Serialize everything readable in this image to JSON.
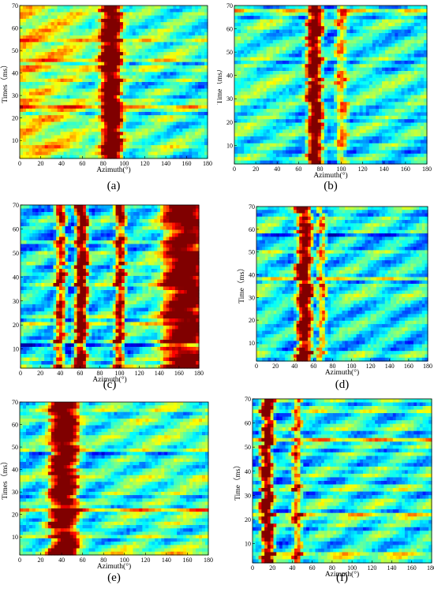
{
  "colors": {
    "colormap": [
      "#00008f",
      "#0000ff",
      "#0080ff",
      "#00ffff",
      "#80ff80",
      "#ffff00",
      "#ff8000",
      "#ff0000",
      "#800000"
    ]
  },
  "chart_data": [
    {
      "type": "heatmap",
      "id": "a",
      "caption": "(a)",
      "xlabel": "Azimuth(°)",
      "ylabel": "Times（ms）",
      "xlim": [
        0,
        180
      ],
      "ylim": [
        2,
        70
      ],
      "xticks": [
        0,
        20,
        40,
        60,
        80,
        100,
        120,
        140,
        160,
        180
      ],
      "yticks": [
        10,
        20,
        30,
        40,
        50,
        60,
        70
      ],
      "ridges": [
        {
          "azimuth": 88,
          "width": 10,
          "strength": 1.0
        }
      ],
      "baseline_left": 0.62,
      "baseline_right": 0.38
    },
    {
      "type": "heatmap",
      "id": "b",
      "caption": "(b)",
      "xlabel": "Azimuth(°)",
      "ylabel": "Time（ms）",
      "xlim": [
        0,
        180
      ],
      "ylim": [
        2,
        70
      ],
      "xticks": [
        0,
        20,
        40,
        60,
        80,
        100,
        120,
        140,
        160,
        180
      ],
      "yticks": [
        10,
        20,
        30,
        40,
        50,
        60,
        70
      ],
      "ridges": [
        {
          "azimuth": 75,
          "width": 7,
          "strength": 1.0
        },
        {
          "azimuth": 100,
          "width": 5,
          "strength": 0.45
        }
      ],
      "baseline_left": 0.42,
      "baseline_right": 0.38
    },
    {
      "type": "heatmap",
      "id": "c",
      "caption": "(c)",
      "xlabel": "Azimuth(°)",
      "ylabel": "",
      "xlim": [
        0,
        180
      ],
      "ylim": [
        2,
        70
      ],
      "xticks": [
        0,
        20,
        40,
        60,
        80,
        100,
        120,
        140,
        160,
        180
      ],
      "yticks": [
        10,
        20,
        30,
        40,
        50,
        60,
        70
      ],
      "ridges": [
        {
          "azimuth": 40,
          "width": 5,
          "strength": 0.7
        },
        {
          "azimuth": 61,
          "width": 6,
          "strength": 1.0
        },
        {
          "azimuth": 100,
          "width": 5,
          "strength": 0.75
        },
        {
          "azimuth": 165,
          "width": 22,
          "strength": 0.85
        }
      ],
      "baseline_left": 0.35,
      "baseline_right": 0.5
    },
    {
      "type": "heatmap",
      "id": "d",
      "caption": "(d)",
      "xlabel": "Azimuth(°)",
      "ylabel": "Time（ms）",
      "xlim": [
        0,
        180
      ],
      "ylim": [
        2,
        70
      ],
      "xticks": [
        0,
        20,
        40,
        60,
        80,
        100,
        120,
        140,
        160,
        180
      ],
      "yticks": [
        10,
        20,
        30,
        40,
        50,
        60,
        70
      ],
      "ridges": [
        {
          "azimuth": 50,
          "width": 8,
          "strength": 1.0
        },
        {
          "azimuth": 68,
          "width": 4,
          "strength": 0.55
        }
      ],
      "baseline_left": 0.4,
      "baseline_right": 0.35
    },
    {
      "type": "heatmap",
      "id": "e",
      "caption": "(e)",
      "xlabel": "Azimuth(°)",
      "ylabel": "Times（ms）",
      "xlim": [
        0,
        180
      ],
      "ylim": [
        2,
        70
      ],
      "xticks": [
        0,
        20,
        40,
        60,
        80,
        100,
        120,
        140,
        160,
        180
      ],
      "yticks": [
        10,
        20,
        30,
        40,
        50,
        60,
        70
      ],
      "ridges": [
        {
          "azimuth": 42,
          "width": 14,
          "strength": 1.0
        }
      ],
      "baseline_left": 0.45,
      "baseline_right": 0.45
    },
    {
      "type": "heatmap",
      "id": "f",
      "caption": "(f)",
      "xlabel": "Azimuth(°)",
      "ylabel": "Time（ms）",
      "xlim": [
        0,
        180
      ],
      "ylim": [
        2,
        70
      ],
      "xticks": [
        0,
        20,
        40,
        60,
        80,
        100,
        120,
        140,
        160,
        180
      ],
      "yticks": [
        10,
        20,
        30,
        40,
        50,
        60,
        70
      ],
      "ridges": [
        {
          "azimuth": 15,
          "width": 6,
          "strength": 1.0
        },
        {
          "azimuth": 45,
          "width": 4,
          "strength": 0.55
        }
      ],
      "baseline_left": 0.4,
      "baseline_right": 0.4
    }
  ]
}
